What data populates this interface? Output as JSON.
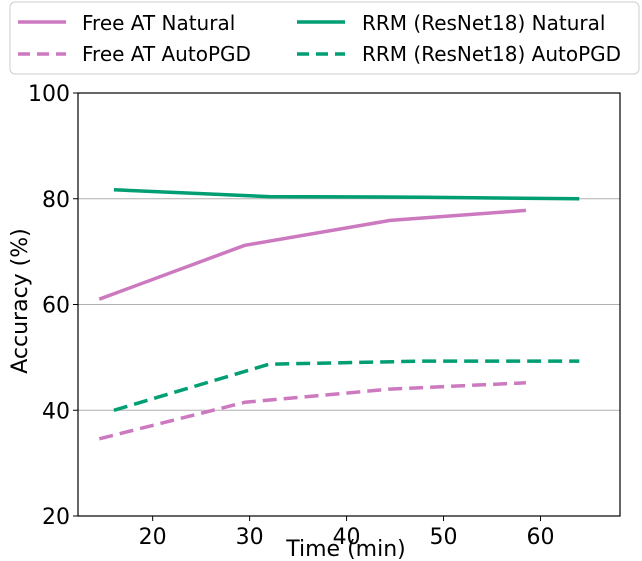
{
  "chart_data": {
    "type": "line",
    "title": "",
    "xlabel": "Time (min)",
    "ylabel": "Accuracy (%)",
    "xlim": [
      12.3,
      68.2
    ],
    "ylim": [
      20,
      100
    ],
    "xticks": [
      20,
      30,
      40,
      50,
      60
    ],
    "yticks": [
      20,
      40,
      60,
      80,
      100
    ],
    "grid": "horizontal",
    "legend_position": "top",
    "series": [
      {
        "name": "Free AT Natural",
        "color": "#cc79c0",
        "dash": "solid",
        "x": [
          14.5,
          29.5,
          44.5,
          58.5
        ],
        "y": [
          61.0,
          71.2,
          75.9,
          77.8
        ]
      },
      {
        "name": "Free AT AutoPGD",
        "color": "#cc79c0",
        "dash": "dashed",
        "x": [
          14.5,
          29.5,
          44.5,
          58.5
        ],
        "y": [
          34.6,
          41.5,
          44.0,
          45.2
        ]
      },
      {
        "name": "RRM (ResNet18) Natural",
        "color": "#009e73",
        "dash": "solid",
        "x": [
          16.0,
          32.0,
          48.0,
          64.0
        ],
        "y": [
          81.7,
          80.4,
          80.3,
          80.0
        ]
      },
      {
        "name": "RRM (ResNet18) AutoPGD",
        "color": "#009e73",
        "dash": "dashed",
        "x": [
          16.0,
          32.0,
          48.0,
          64.0
        ],
        "y": [
          40.0,
          48.7,
          49.3,
          49.3
        ]
      }
    ]
  }
}
